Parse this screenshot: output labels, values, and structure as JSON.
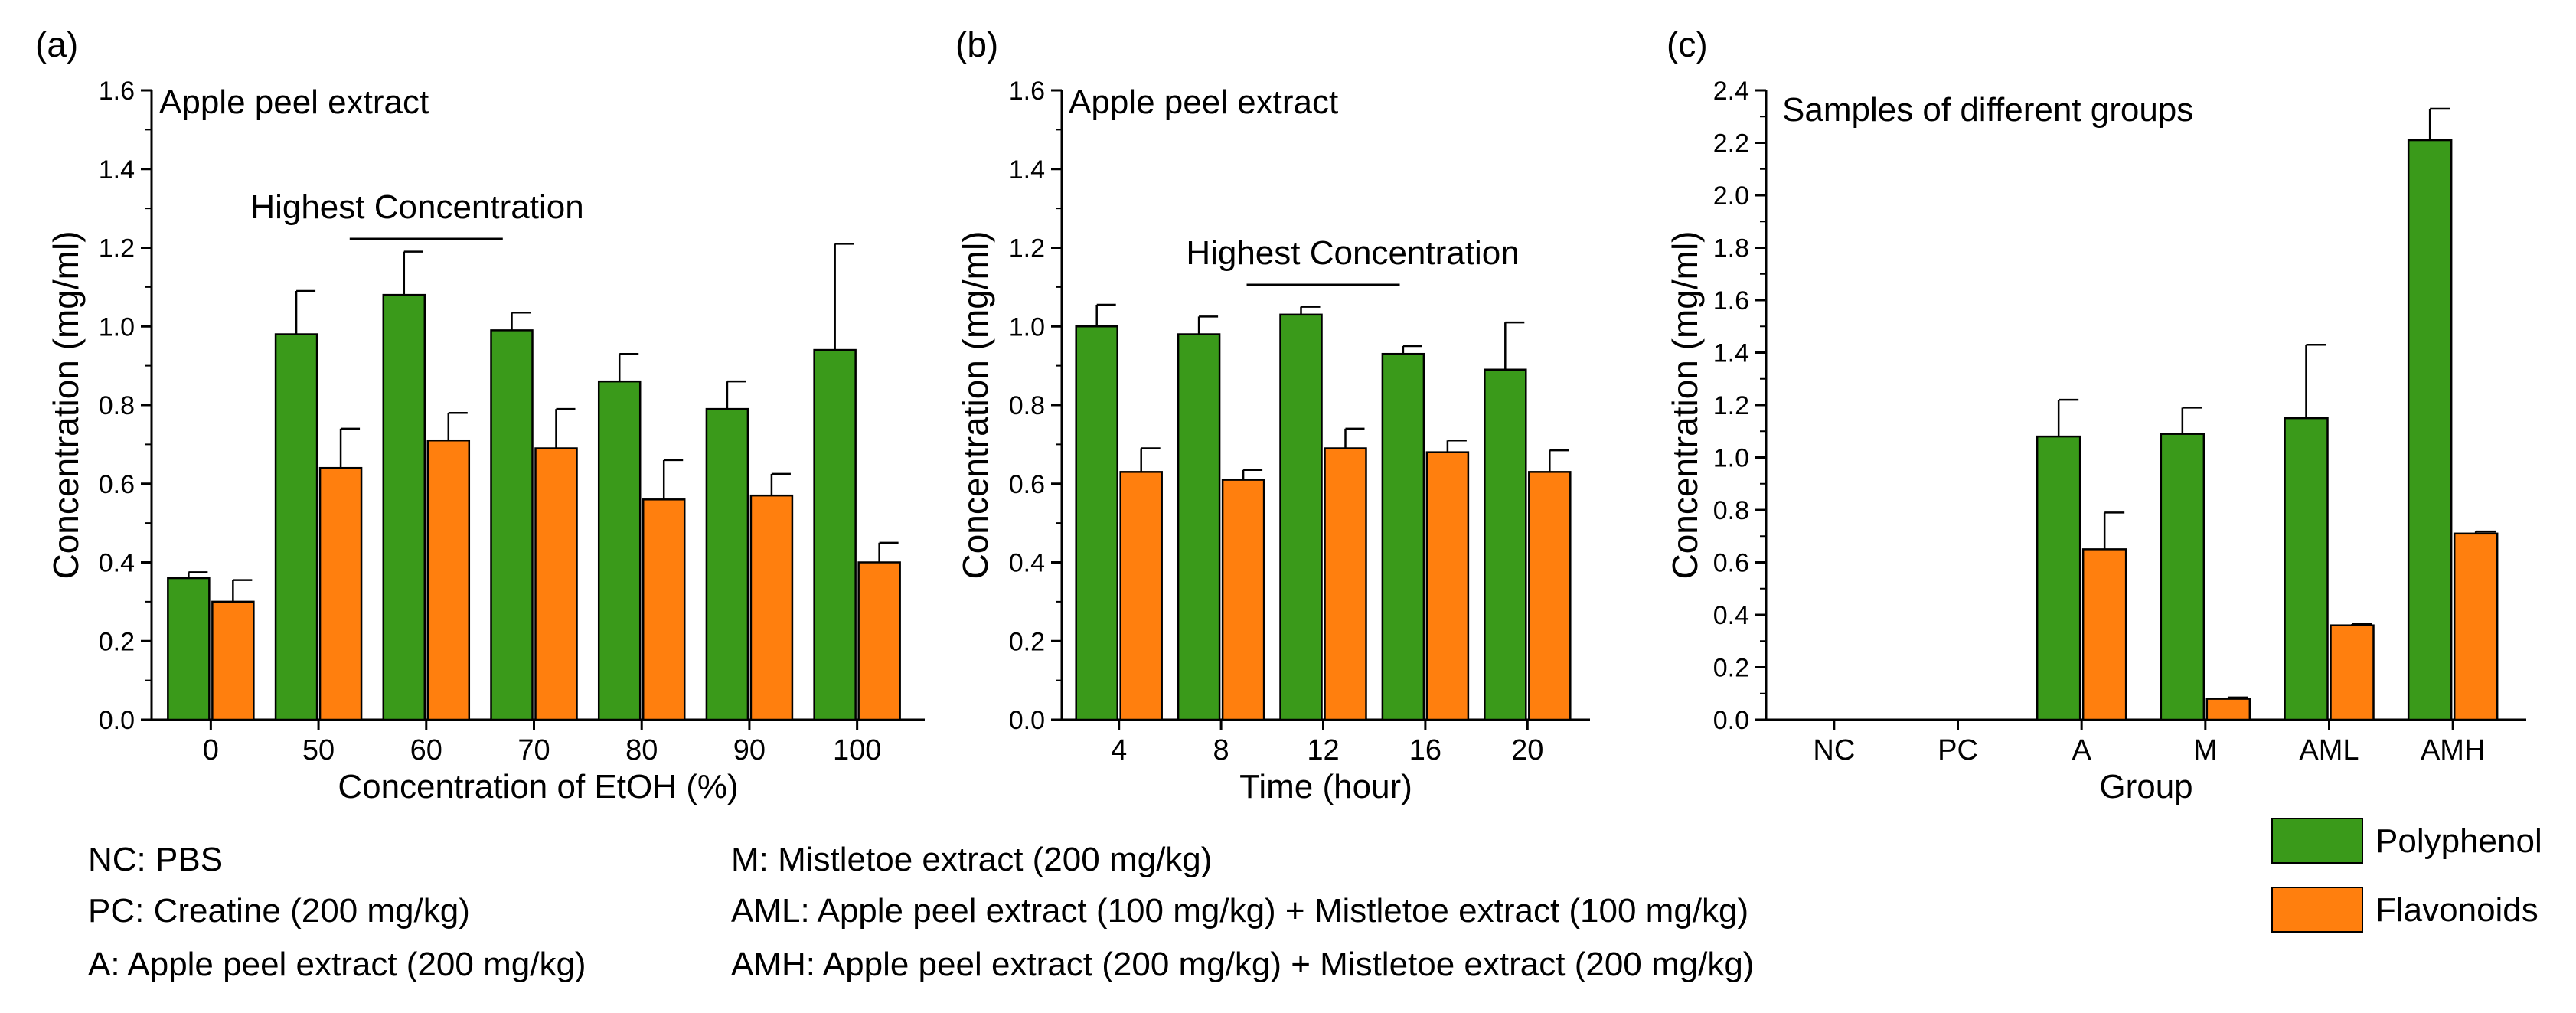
{
  "colors": {
    "polyphenol": "#3a9a1a",
    "flavonoids": "#ff7f0e",
    "axis": "#000000"
  },
  "legend": {
    "items": [
      "Polyphenol",
      "Flavonoids"
    ]
  },
  "notes": {
    "nc": "NC:  PBS",
    "pc": "PC:  Creatine (200 mg/kg)",
    "a": "A:  Apple peel extract (200 mg/kg)",
    "m": "M:  Mistletoe extract (200 mg/kg)",
    "aml": "AML:  Apple peel extract (100 mg/kg) + Mistletoe extract (100 mg/kg)",
    "amh": "AMH:  Apple peel extract (200 mg/kg) + Mistletoe extract (200 mg/kg)"
  },
  "chart_data": [
    {
      "panel": "(a)",
      "type": "bar",
      "title": "Apple peel extract",
      "annotation": "Highest Concentration",
      "annotation_at": "60",
      "xlabel": "Concentration of EtOH (%)",
      "ylabel": "Concentration (mg/ml)",
      "ylim": [
        0,
        1.6
      ],
      "yticks": [
        0.0,
        0.2,
        0.4,
        0.6,
        0.8,
        1.0,
        1.2,
        1.4,
        1.6
      ],
      "categories": [
        "0",
        "50",
        "60",
        "70",
        "80",
        "90",
        "100"
      ],
      "series": [
        {
          "name": "Polyphenol",
          "values": [
            0.36,
            0.98,
            1.08,
            0.99,
            0.86,
            0.79,
            0.94
          ],
          "errors": [
            0.015,
            0.11,
            0.11,
            0.045,
            0.07,
            0.07,
            0.27
          ]
        },
        {
          "name": "Flavonoids",
          "values": [
            0.3,
            0.64,
            0.71,
            0.69,
            0.56,
            0.57,
            0.4
          ],
          "errors": [
            0.055,
            0.1,
            0.07,
            0.1,
            0.1,
            0.055,
            0.05
          ]
        }
      ]
    },
    {
      "panel": "(b)",
      "type": "bar",
      "title": "Apple peel extract",
      "annotation": "Highest Concentration",
      "annotation_at": "12",
      "xlabel": "Time (hour)",
      "ylabel": "Concentration (mg/ml)",
      "ylim": [
        0,
        1.6
      ],
      "yticks": [
        0.0,
        0.2,
        0.4,
        0.6,
        0.8,
        1.0,
        1.2,
        1.4,
        1.6
      ],
      "categories": [
        "4",
        "8",
        "12",
        "16",
        "20"
      ],
      "series": [
        {
          "name": "Polyphenol",
          "values": [
            1.0,
            0.98,
            1.03,
            0.93,
            0.89
          ],
          "errors": [
            0.055,
            0.045,
            0.02,
            0.02,
            0.12
          ]
        },
        {
          "name": "Flavonoids",
          "values": [
            0.63,
            0.61,
            0.69,
            0.68,
            0.63
          ],
          "errors": [
            0.06,
            0.025,
            0.05,
            0.03,
            0.055
          ]
        }
      ]
    },
    {
      "panel": "(c)",
      "type": "bar",
      "title": "Samples of different groups",
      "xlabel": "Group",
      "ylabel": "Concentration (mg/ml)",
      "ylim": [
        0,
        2.4
      ],
      "yticks": [
        0.0,
        0.2,
        0.4,
        0.6,
        0.8,
        1.0,
        1.2,
        1.4,
        1.6,
        1.8,
        2.0,
        2.2,
        2.4
      ],
      "categories": [
        "NC",
        "PC",
        "A",
        "M",
        "AML",
        "AMH"
      ],
      "series": [
        {
          "name": "Polyphenol",
          "values": [
            0,
            0,
            1.08,
            1.09,
            1.15,
            2.21
          ],
          "errors": [
            0,
            0,
            0.14,
            0.1,
            0.28,
            0.12
          ]
        },
        {
          "name": "Flavonoids",
          "values": [
            0,
            0,
            0.65,
            0.08,
            0.36,
            0.71
          ],
          "errors": [
            0,
            0,
            0.14,
            0.005,
            0.005,
            0.008
          ]
        }
      ]
    }
  ]
}
